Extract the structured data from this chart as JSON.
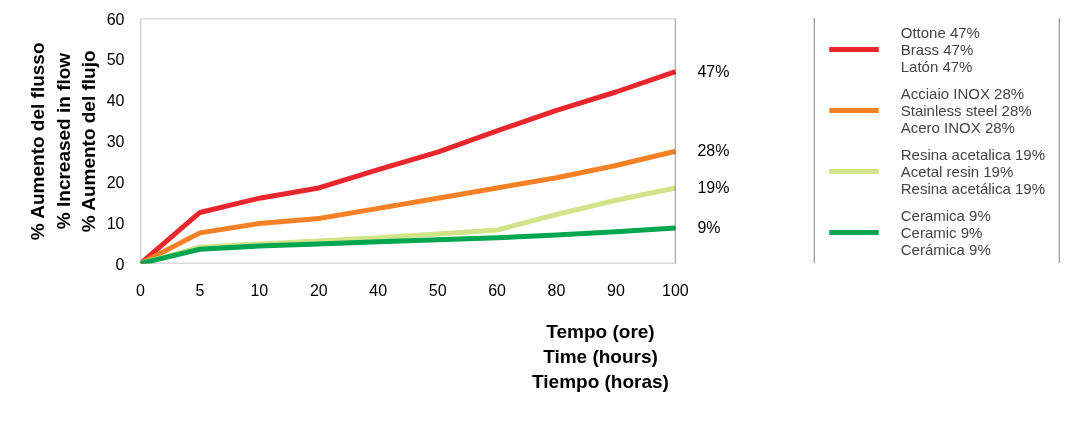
{
  "chart_data": {
    "type": "line",
    "xlabel": "Tempo (ore)\nTime (hours)\nTiempo (horas)",
    "ylabel": "% Aumento del flusso\n% Increased in flow\n% Aumento del flujo",
    "categories": [
      "0",
      "5",
      "10",
      "20",
      "40",
      "50",
      "60",
      "80",
      "90",
      "100"
    ],
    "ylim": [
      0,
      60
    ],
    "yticks": [
      0,
      10,
      20,
      30,
      40,
      50,
      60
    ],
    "grid": false,
    "legend": "right",
    "marker": "none",
    "line_style": "solid",
    "series": [
      {
        "name": "Ottone 47%\nBrass 47%\nLatón 47%",
        "color": "#e8262b",
        "values": [
          0,
          12.5,
          16,
          18.5,
          23,
          27.3,
          32.5,
          37.5,
          42,
          47
        ]
      },
      {
        "name": "Acciaio INOX 28%\nStainless steel 28%\nAcero INOX 28%",
        "color": "#f58025",
        "values": [
          0,
          7.5,
          9.8,
          11,
          13.5,
          16,
          18.5,
          21,
          24,
          27.5
        ]
      },
      {
        "name": "Resina acetalica 19%\nAcetal resin 19%\nResina acetálica 19%",
        "color": "#d2e38a",
        "values": [
          0,
          4,
          4.8,
          5.5,
          6.3,
          7.2,
          8.2,
          12,
          15.5,
          18.5
        ]
      },
      {
        "name": "Ceramica 9%\nCeramic 9%\nCerámica 9%",
        "color": "#00a650",
        "values": [
          0,
          3.5,
          4.3,
          4.8,
          5.3,
          5.8,
          6.3,
          7,
          7.8,
          8.7
        ]
      }
    ],
    "annotations": [
      {
        "text": "47%",
        "x": "100",
        "y": 47
      },
      {
        "text": "28%",
        "x": "100",
        "y": 27.5
      },
      {
        "text": "19%",
        "x": "100",
        "y": 18.5
      },
      {
        "text": "9%",
        "x": "100",
        "y": 8.7
      }
    ]
  }
}
